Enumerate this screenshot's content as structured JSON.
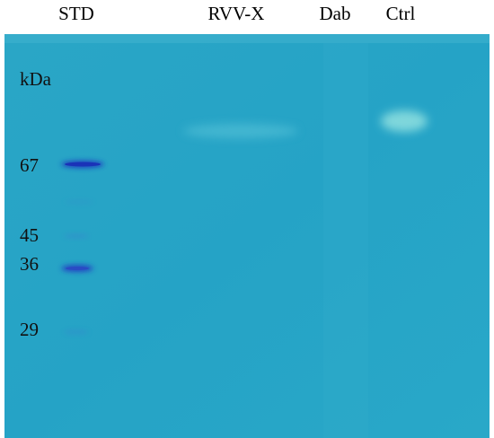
{
  "lanes": [
    "STD",
    "RVV-X",
    "Dab",
    "Ctrl"
  ],
  "marker_unit": "kDa",
  "markers": [
    "67",
    "45",
    "36",
    "29"
  ]
}
